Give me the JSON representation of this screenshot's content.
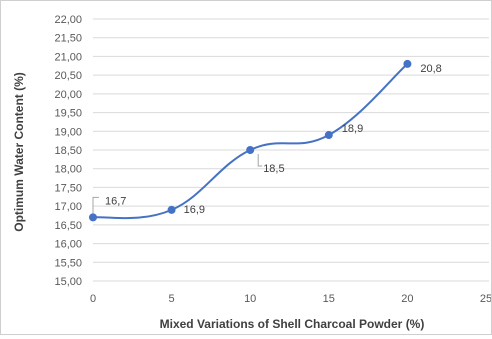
{
  "chart_data": {
    "type": "line",
    "smoothed": true,
    "xlabel": "Mixed Variations of Shell Charcoal Powder (%)",
    "ylabel": "Optimum Water Content (%)",
    "x_ticks": [
      "0",
      "5",
      "10",
      "15",
      "20",
      "25"
    ],
    "y_ticks": [
      "15,00",
      "15,50",
      "16,00",
      "16,50",
      "17,00",
      "17,50",
      "18,00",
      "18,50",
      "19,00",
      "19,50",
      "20,00",
      "20,50",
      "21,00",
      "21,50",
      "22,00"
    ],
    "xlim": [
      0,
      25
    ],
    "ylim": [
      15,
      22
    ],
    "grid": "horizontal",
    "colors": {
      "line": "#4472c4",
      "marker": "#4472c4",
      "grid": "#d9d9d9"
    },
    "series": [
      {
        "x": [
          0,
          5,
          10,
          15,
          20
        ],
        "y": [
          16.7,
          16.9,
          18.5,
          18.9,
          20.8
        ],
        "labels": [
          "16,7",
          "16,9",
          "18,5",
          "18,9",
          "20,8"
        ]
      }
    ]
  }
}
